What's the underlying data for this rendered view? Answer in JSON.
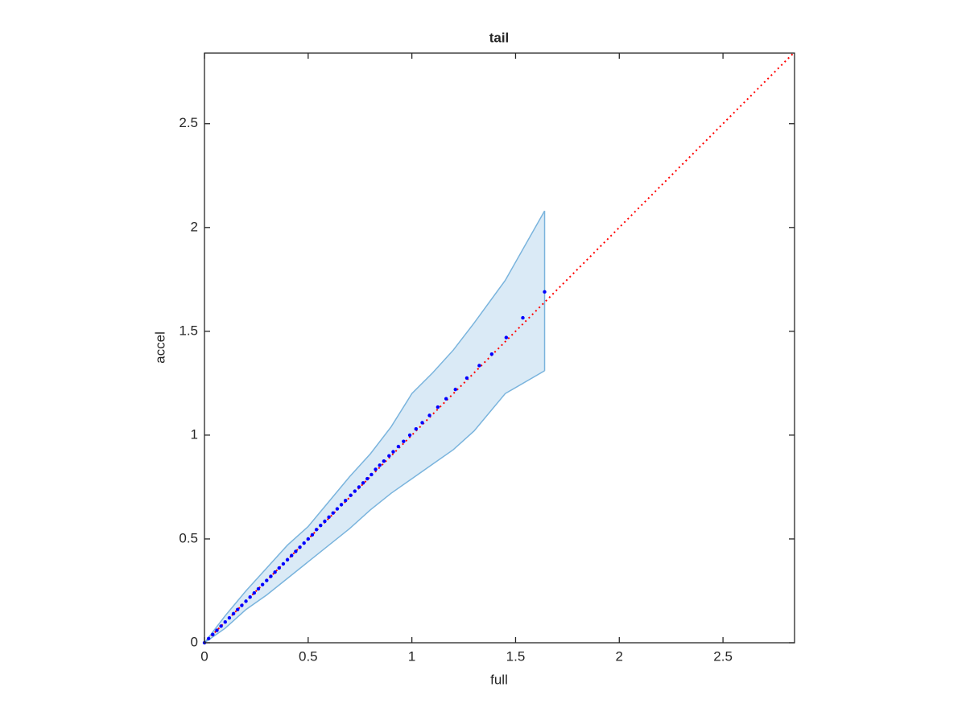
{
  "chart_data": {
    "type": "scatter",
    "title": "tail",
    "x_label": "full",
    "y_label": "accel",
    "xlim": [
      0,
      2.845
    ],
    "ylim": [
      0,
      2.84
    ],
    "xticks": [
      0,
      0.5,
      1,
      1.5,
      2,
      2.5
    ],
    "yticks": [
      0,
      0.5,
      1,
      1.5,
      2,
      2.5
    ],
    "grid": false,
    "band": {
      "color": "#7ab4dd",
      "x": [
        0,
        0.1,
        0.2,
        0.3,
        0.4,
        0.5,
        0.6,
        0.7,
        0.8,
        0.9,
        1.0,
        1.1,
        1.2,
        1.3,
        1.45,
        1.64
      ],
      "upper": [
        0,
        0.13,
        0.25,
        0.36,
        0.47,
        0.56,
        0.68,
        0.8,
        0.91,
        1.04,
        1.2,
        1.3,
        1.41,
        1.54,
        1.745,
        2.08
      ],
      "lower": [
        0,
        0.07,
        0.16,
        0.23,
        0.31,
        0.39,
        0.47,
        0.55,
        0.64,
        0.72,
        0.79,
        0.86,
        0.93,
        1.02,
        1.2,
        1.31
      ]
    },
    "reference_line": {
      "color": "#ff0000",
      "x": [
        0,
        2.845
      ],
      "y": [
        0,
        2.845
      ]
    },
    "series": [
      {
        "color": "#0000ff",
        "x": [
          0,
          0.02,
          0.04,
          0.06,
          0.08,
          0.1,
          0.12,
          0.14,
          0.16,
          0.18,
          0.2,
          0.22,
          0.24,
          0.26,
          0.28,
          0.3,
          0.32,
          0.34,
          0.36,
          0.38,
          0.4,
          0.42,
          0.44,
          0.46,
          0.48,
          0.5,
          0.52,
          0.54,
          0.56,
          0.58,
          0.6,
          0.62,
          0.64,
          0.66,
          0.68,
          0.705,
          0.725,
          0.745,
          0.765,
          0.785,
          0.805,
          0.825,
          0.845,
          0.865,
          0.89,
          0.91,
          0.935,
          0.96,
          0.99,
          1.02,
          1.05,
          1.085,
          1.125,
          1.165,
          1.21,
          1.265,
          1.325,
          1.385,
          1.455,
          1.535,
          1.64
        ],
        "y": [
          0,
          0.02,
          0.04,
          0.06,
          0.08,
          0.1,
          0.12,
          0.14,
          0.16,
          0.18,
          0.2,
          0.22,
          0.24,
          0.26,
          0.28,
          0.3,
          0.32,
          0.34,
          0.36,
          0.38,
          0.4,
          0.42,
          0.44,
          0.46,
          0.48,
          0.5,
          0.52,
          0.545,
          0.565,
          0.585,
          0.605,
          0.625,
          0.645,
          0.665,
          0.685,
          0.71,
          0.73,
          0.75,
          0.77,
          0.79,
          0.81,
          0.835,
          0.855,
          0.875,
          0.9,
          0.92,
          0.945,
          0.97,
          1.0,
          1.03,
          1.06,
          1.095,
          1.135,
          1.175,
          1.22,
          1.275,
          1.335,
          1.39,
          1.47,
          1.565,
          1.69
        ]
      }
    ]
  }
}
